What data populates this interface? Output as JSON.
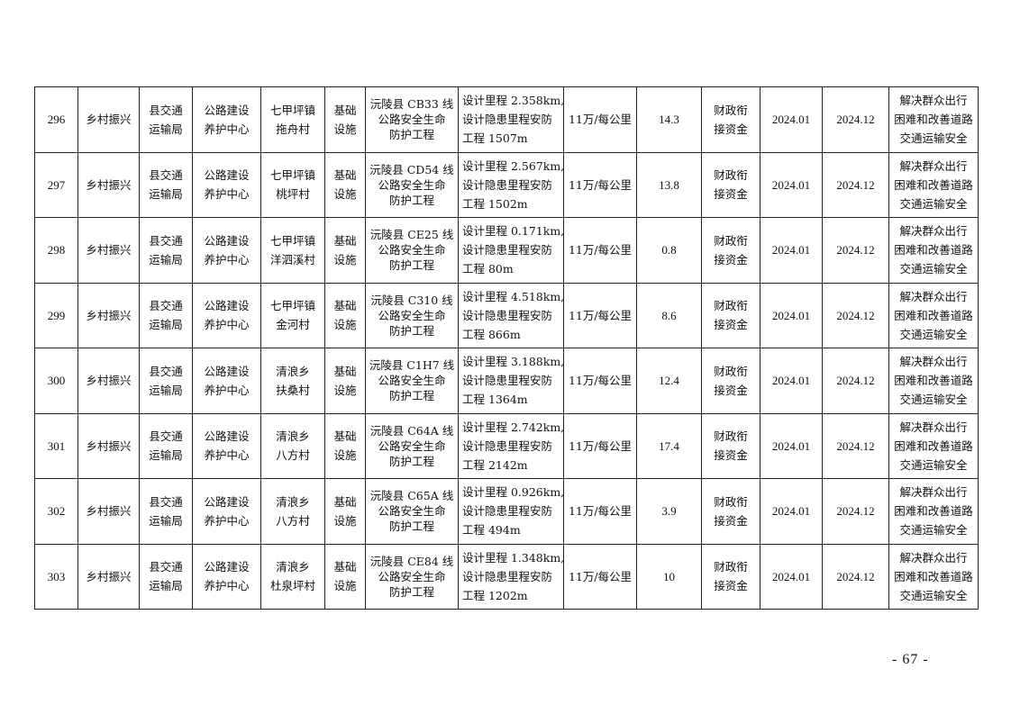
{
  "rows": [
    {
      "no": "296",
      "category": "乡村振兴",
      "dept1": "县交通",
      "dept2": "运输局",
      "unit1": "公路建设",
      "unit2": "养护中心",
      "loc1": "七甲坪镇",
      "loc2": "拖舟村",
      "type1": "基础",
      "type2": "设施",
      "proj1": "沅陵县 CB33 线",
      "proj2": "公路安全生命",
      "proj3": "防护工程",
      "desc1": "设计里程 2.358km,",
      "desc2": "设计隐患里程安防",
      "desc3": "工程 1507m",
      "std": "11万/每公里",
      "amount": "14.3",
      "fund1": "财政衔",
      "fund2": "接资金",
      "start": "2024.01",
      "end": "2024.12",
      "goal1": "解决群众出行",
      "goal2": "困难和改善道路",
      "goal3": "交通运输安全"
    },
    {
      "no": "297",
      "category": "乡村振兴",
      "dept1": "县交通",
      "dept2": "运输局",
      "unit1": "公路建设",
      "unit2": "养护中心",
      "loc1": "七甲坪镇",
      "loc2": "桃坪村",
      "type1": "基础",
      "type2": "设施",
      "proj1": "沅陵县 CD54 线",
      "proj2": "公路安全生命",
      "proj3": "防护工程",
      "desc1": "设计里程 2.567km,",
      "desc2": "设计隐患里程安防",
      "desc3": "工程 1502m",
      "std": "11万/每公里",
      "amount": "13.8",
      "fund1": "财政衔",
      "fund2": "接资金",
      "start": "2024.01",
      "end": "2024.12",
      "goal1": "解决群众出行",
      "goal2": "困难和改善道路",
      "goal3": "交通运输安全"
    },
    {
      "no": "298",
      "category": "乡村振兴",
      "dept1": "县交通",
      "dept2": "运输局",
      "unit1": "公路建设",
      "unit2": "养护中心",
      "loc1": "七甲坪镇",
      "loc2": "洋泗溪村",
      "type1": "基础",
      "type2": "设施",
      "proj1": "沅陵县 CE25 线",
      "proj2": "公路安全生命",
      "proj3": "防护工程",
      "desc1": "设计里程 0.171km,",
      "desc2": "设计隐患里程安防",
      "desc3": "工程 80m",
      "std": "11万/每公里",
      "amount": "0.8",
      "fund1": "财政衔",
      "fund2": "接资金",
      "start": "2024.01",
      "end": "2024.12",
      "goal1": "解决群众出行",
      "goal2": "困难和改善道路",
      "goal3": "交通运输安全"
    },
    {
      "no": "299",
      "category": "乡村振兴",
      "dept1": "县交通",
      "dept2": "运输局",
      "unit1": "公路建设",
      "unit2": "养护中心",
      "loc1": "七甲坪镇",
      "loc2": "金河村",
      "type1": "基础",
      "type2": "设施",
      "proj1": "沅陵县 C310 线",
      "proj2": "公路安全生命",
      "proj3": "防护工程",
      "desc1": "设计里程 4.518km,",
      "desc2": "设计隐患里程安防",
      "desc3": "工程 866m",
      "std": "11万/每公里",
      "amount": "8.6",
      "fund1": "财政衔",
      "fund2": "接资金",
      "start": "2024.01",
      "end": "2024.12",
      "goal1": "解决群众出行",
      "goal2": "困难和改善道路",
      "goal3": "交通运输安全"
    },
    {
      "no": "300",
      "category": "乡村振兴",
      "dept1": "县交通",
      "dept2": "运输局",
      "unit1": "公路建设",
      "unit2": "养护中心",
      "loc1": "清浪乡",
      "loc2": "扶桑村",
      "type1": "基础",
      "type2": "设施",
      "proj1": "沅陵县 C1H7 线",
      "proj2": "公路安全生命",
      "proj3": "防护工程",
      "desc1": "设计里程 3.188km,",
      "desc2": "设计隐患里程安防",
      "desc3": "工程 1364m",
      "std": "11万/每公里",
      "amount": "12.4",
      "fund1": "财政衔",
      "fund2": "接资金",
      "start": "2024.01",
      "end": "2024.12",
      "goal1": "解决群众出行",
      "goal2": "困难和改善道路",
      "goal3": "交通运输安全"
    },
    {
      "no": "301",
      "category": "乡村振兴",
      "dept1": "县交通",
      "dept2": "运输局",
      "unit1": "公路建设",
      "unit2": "养护中心",
      "loc1": "清浪乡",
      "loc2": "八方村",
      "type1": "基础",
      "type2": "设施",
      "proj1": "沅陵县 C64A 线",
      "proj2": "公路安全生命",
      "proj3": "防护工程",
      "desc1": "设计里程 2.742km,",
      "desc2": "设计隐患里程安防",
      "desc3": "工程 2142m",
      "std": "11万/每公里",
      "amount": "17.4",
      "fund1": "财政衔",
      "fund2": "接资金",
      "start": "2024.01",
      "end": "2024.12",
      "goal1": "解决群众出行",
      "goal2": "困难和改善道路",
      "goal3": "交通运输安全"
    },
    {
      "no": "302",
      "category": "乡村振兴",
      "dept1": "县交通",
      "dept2": "运输局",
      "unit1": "公路建设",
      "unit2": "养护中心",
      "loc1": "清浪乡",
      "loc2": "八方村",
      "type1": "基础",
      "type2": "设施",
      "proj1": "沅陵县 C65A 线",
      "proj2": "公路安全生命",
      "proj3": "防护工程",
      "desc1": "设计里程 0.926km,",
      "desc2": "设计隐患里程安防",
      "desc3": "工程 494m",
      "std": "11万/每公里",
      "amount": "3.9",
      "fund1": "财政衔",
      "fund2": "接资金",
      "start": "2024.01",
      "end": "2024.12",
      "goal1": "解决群众出行",
      "goal2": "困难和改善道路",
      "goal3": "交通运输安全"
    },
    {
      "no": "303",
      "category": "乡村振兴",
      "dept1": "县交通",
      "dept2": "运输局",
      "unit1": "公路建设",
      "unit2": "养护中心",
      "loc1": "清浪乡",
      "loc2": "杜泉坪村",
      "type1": "基础",
      "type2": "设施",
      "proj1": "沅陵县 CE84 线",
      "proj2": "公路安全生命",
      "proj3": "防护工程",
      "desc1": "设计里程 1.348km,",
      "desc2": "设计隐患里程安防",
      "desc3": "工程 1202m",
      "std": "11万/每公里",
      "amount": "10",
      "fund1": "财政衔",
      "fund2": "接资金",
      "start": "2024.01",
      "end": "2024.12",
      "goal1": "解决群众出行",
      "goal2": "困难和改善道路",
      "goal3": "交通运输安全"
    }
  ],
  "page_number": "- 67 -"
}
